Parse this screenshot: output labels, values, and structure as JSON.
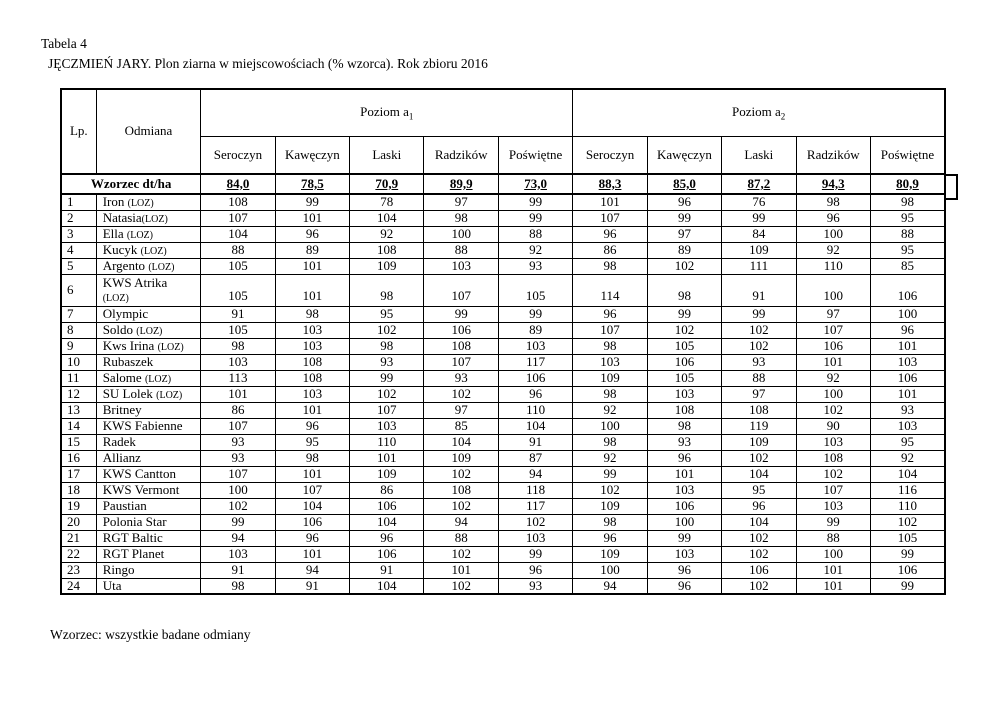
{
  "page": {
    "caption_number": "Tabela 4",
    "caption_text": "JĘCZMIEŃ JARY. Plon ziarna w miejscowościach (% wzorca). Rok zbioru 2016",
    "footnote": "Wzorzec: wszystkie badane odmiany"
  },
  "table": {
    "headers": {
      "lp": "Lp.",
      "odmiana": "Odmiana",
      "group1": {
        "text": "Poziom a",
        "sub": "1"
      },
      "group2": {
        "text": "Poziom a",
        "sub": "2"
      },
      "locations": [
        "Seroczyn",
        "Kawęczyn",
        "Laski",
        "Radzików",
        "Poświętne"
      ]
    },
    "wzorzec_row": {
      "label": "Wzorzec dt/ha",
      "values": [
        "84,0",
        "78,5",
        "70,9",
        "89,9",
        "73,0",
        "88,3",
        "85,0",
        "87,2",
        "94,3",
        "80,9"
      ]
    },
    "rows": [
      {
        "lp": "1",
        "name": "Iron",
        "loz": "(LOZ)",
        "sep": " ",
        "values": [
          108,
          99,
          78,
          97,
          99,
          101,
          96,
          76,
          98,
          98
        ]
      },
      {
        "lp": "2",
        "name": "Natasia",
        "loz": "(LOZ)",
        "sep": "",
        "values": [
          107,
          101,
          104,
          98,
          99,
          107,
          99,
          99,
          96,
          95
        ]
      },
      {
        "lp": "3",
        "name": "Ella",
        "loz": "(LOZ)",
        "sep": " ",
        "values": [
          104,
          96,
          92,
          100,
          88,
          96,
          97,
          84,
          100,
          88
        ]
      },
      {
        "lp": "4",
        "name": "Kucyk",
        "loz": "(LOZ)",
        "sep": " ",
        "values": [
          88,
          89,
          108,
          88,
          92,
          86,
          89,
          109,
          92,
          95
        ]
      },
      {
        "lp": "5",
        "name": "Argento",
        "loz": "(LOZ)",
        "sep": " ",
        "values": [
          105,
          101,
          109,
          103,
          93,
          98,
          102,
          111,
          110,
          85
        ]
      },
      {
        "lp": "6",
        "name": "KWS Atrika",
        "loz": "(LOZ)",
        "sep": " ",
        "two_line": true,
        "values": [
          105,
          101,
          98,
          107,
          105,
          114,
          98,
          91,
          100,
          106
        ]
      },
      {
        "lp": "7",
        "name": "Olympic",
        "loz": "",
        "sep": "",
        "values": [
          91,
          98,
          95,
          99,
          99,
          96,
          99,
          99,
          97,
          100
        ]
      },
      {
        "lp": "8",
        "name": "Soldo",
        "loz": "(LOZ)",
        "sep": " ",
        "values": [
          105,
          103,
          102,
          106,
          89,
          107,
          102,
          102,
          107,
          96
        ]
      },
      {
        "lp": "9",
        "name": "Kws Irina",
        "loz": "(LOZ)",
        "sep": " ",
        "values": [
          98,
          103,
          98,
          108,
          103,
          98,
          105,
          102,
          106,
          101
        ]
      },
      {
        "lp": "10",
        "name": "Rubaszek",
        "loz": "",
        "sep": "",
        "values": [
          103,
          108,
          93,
          107,
          117,
          103,
          106,
          93,
          101,
          103
        ]
      },
      {
        "lp": "11",
        "name": "Salome",
        "loz": "(LOZ)",
        "sep": " ",
        "values": [
          113,
          108,
          99,
          93,
          106,
          109,
          105,
          88,
          92,
          106
        ]
      },
      {
        "lp": "12",
        "name": "SU Lolek",
        "loz": "(LOZ)",
        "sep": " ",
        "values": [
          101,
          103,
          102,
          102,
          96,
          98,
          103,
          97,
          100,
          101
        ]
      },
      {
        "lp": "13",
        "name": "Britney",
        "loz": "",
        "sep": "",
        "values": [
          86,
          101,
          107,
          97,
          110,
          92,
          108,
          108,
          102,
          93
        ]
      },
      {
        "lp": "14",
        "name": "KWS Fabienne",
        "loz": "",
        "sep": "",
        "values": [
          107,
          96,
          103,
          85,
          104,
          100,
          98,
          119,
          90,
          103
        ]
      },
      {
        "lp": "15",
        "name": "Radek",
        "loz": "",
        "sep": "",
        "values": [
          93,
          95,
          110,
          104,
          91,
          98,
          93,
          109,
          103,
          95
        ]
      },
      {
        "lp": "16",
        "name": "Allianz",
        "loz": "",
        "sep": "",
        "values": [
          93,
          98,
          101,
          109,
          87,
          92,
          96,
          102,
          108,
          92
        ]
      },
      {
        "lp": "17",
        "name": "KWS Cantton",
        "loz": "",
        "sep": "",
        "values": [
          107,
          101,
          109,
          102,
          94,
          99,
          101,
          104,
          102,
          104
        ]
      },
      {
        "lp": "18",
        "name": "KWS Vermont",
        "loz": "",
        "sep": "",
        "values": [
          100,
          107,
          86,
          108,
          118,
          102,
          103,
          95,
          107,
          116
        ]
      },
      {
        "lp": "19",
        "name": "Paustian",
        "loz": "",
        "sep": "",
        "values": [
          102,
          104,
          106,
          102,
          117,
          109,
          106,
          96,
          103,
          110
        ]
      },
      {
        "lp": "20",
        "name": "Polonia Star",
        "loz": "",
        "sep": "",
        "values": [
          99,
          106,
          104,
          94,
          102,
          98,
          100,
          104,
          99,
          102
        ]
      },
      {
        "lp": "21",
        "name": "RGT Baltic",
        "loz": "",
        "sep": "",
        "values": [
          94,
          96,
          96,
          88,
          103,
          96,
          99,
          102,
          88,
          105
        ]
      },
      {
        "lp": "22",
        "name": "RGT Planet",
        "loz": "",
        "sep": "",
        "values": [
          103,
          101,
          106,
          102,
          99,
          109,
          103,
          102,
          100,
          99
        ]
      },
      {
        "lp": "23",
        "name": "Ringo",
        "loz": "",
        "sep": "",
        "values": [
          91,
          94,
          91,
          101,
          96,
          100,
          96,
          106,
          101,
          106
        ]
      },
      {
        "lp": "24",
        "name": "Uta",
        "loz": "",
        "sep": "",
        "values": [
          98,
          91,
          104,
          102,
          93,
          94,
          96,
          102,
          101,
          99
        ]
      }
    ]
  }
}
